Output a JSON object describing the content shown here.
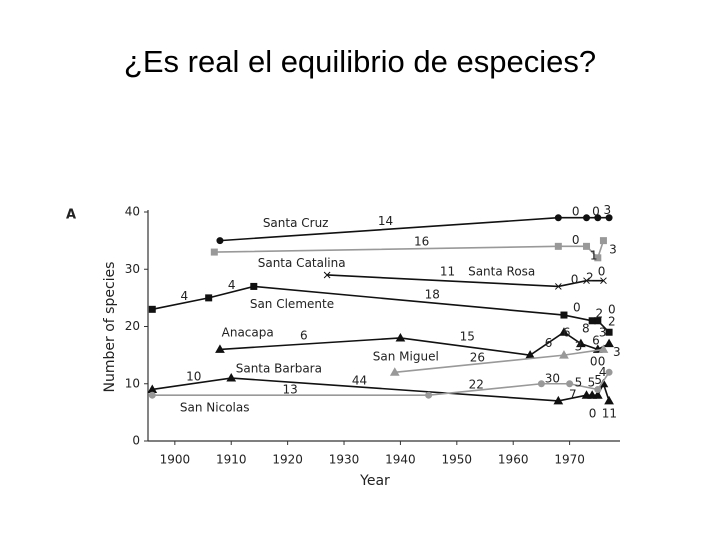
{
  "slide_title": "¿Es real el equilibrio de especies?",
  "chart_data": {
    "type": "line",
    "panel_label": "A",
    "x_label": "Year",
    "y_label": "Number of species",
    "xlim": [
      1894,
      1980
    ],
    "ylim": [
      0,
      40
    ],
    "xticks": [
      1900,
      1910,
      1920,
      1930,
      1940,
      1950,
      1960,
      1970
    ],
    "yticks": [
      0,
      10,
      20,
      30,
      40
    ],
    "series": [
      {
        "name": "Santa Cruz",
        "color": "#111111",
        "marker": "circle",
        "x": [
          1908,
          1968,
          1973,
          1975,
          1977
        ],
        "values": [
          35,
          39,
          39,
          39,
          39
        ]
      },
      {
        "name": "Santa Catalina",
        "color": "#999999",
        "marker": "square",
        "x": [
          1907,
          1968,
          1973,
          1975,
          1976
        ],
        "values": [
          33,
          34,
          34,
          32,
          35
        ]
      },
      {
        "name": "Santa Rosa",
        "color": "#111111",
        "marker": "cross",
        "x": [
          1927,
          1968,
          1973,
          1976
        ],
        "values": [
          29,
          27,
          28,
          28
        ]
      },
      {
        "name": "San Clemente",
        "color": "#111111",
        "marker": "square",
        "x": [
          1896,
          1906,
          1914,
          1969,
          1974,
          1975,
          1977
        ],
        "values": [
          23,
          25,
          27,
          22,
          21,
          21,
          19
        ]
      },
      {
        "name": "Anacapa",
        "color": "#111111",
        "marker": "triangle",
        "x": [
          1908,
          1940,
          1963,
          1969,
          1972,
          1975,
          1977
        ],
        "values": [
          16,
          18,
          15,
          19,
          17,
          16,
          17
        ]
      },
      {
        "name": "San Miguel",
        "color": "#999999",
        "marker": "triangle",
        "x": [
          1939,
          1969,
          1976
        ],
        "values": [
          12,
          15,
          16
        ]
      },
      {
        "name": "Santa Barbara",
        "color": "#111111",
        "marker": "triangle",
        "x": [
          1896,
          1910,
          1968,
          1973,
          1974,
          1975,
          1976,
          1977
        ],
        "values": [
          9,
          11,
          7,
          8,
          8,
          8,
          10,
          7
        ]
      },
      {
        "name": "San Nicolas",
        "color": "#999999",
        "marker": "circle",
        "x": [
          1896,
          1945,
          1965,
          1970,
          1975,
          1977
        ],
        "values": [
          8,
          8,
          10,
          10,
          9,
          12
        ]
      }
    ],
    "annotations": [
      {
        "text": "Santa Cruz",
        "x": 1915.6,
        "y": 38
      },
      {
        "text": "14",
        "x": 1936,
        "y": 38.3
      },
      {
        "text": "0",
        "x": 1970.4,
        "y": 40
      },
      {
        "text": "0",
        "x": 1974,
        "y": 40
      },
      {
        "text": "3",
        "x": 1976,
        "y": 40.3
      },
      {
        "text": "16",
        "x": 1942.4,
        "y": 34.8
      },
      {
        "text": "Santa Catalina",
        "x": 1914.7,
        "y": 31
      },
      {
        "text": "0",
        "x": 1970.4,
        "y": 35
      },
      {
        "text": "1",
        "x": 1973.6,
        "y": 32.3
      },
      {
        "text": "3",
        "x": 1977,
        "y": 33.4
      },
      {
        "text": "11",
        "x": 1947,
        "y": 29.5
      },
      {
        "text": "Santa Rosa",
        "x": 1952,
        "y": 29.5
      },
      {
        "text": "0",
        "x": 1970.2,
        "y": 28.1
      },
      {
        "text": "2",
        "x": 1972.9,
        "y": 28.5
      },
      {
        "text": "0",
        "x": 1975,
        "y": 29.5
      },
      {
        "text": "4",
        "x": 1901,
        "y": 25.2
      },
      {
        "text": "4",
        "x": 1909.4,
        "y": 27.2
      },
      {
        "text": "San Clemente",
        "x": 1913.3,
        "y": 23.8
      },
      {
        "text": "18",
        "x": 1944.3,
        "y": 25.5
      },
      {
        "text": "0",
        "x": 1970.6,
        "y": 23.2
      },
      {
        "text": "2",
        "x": 1974.6,
        "y": 22.2
      },
      {
        "text": "0",
        "x": 1976.8,
        "y": 22.9
      },
      {
        "text": "2",
        "x": 1976.8,
        "y": 20.8
      },
      {
        "text": "3",
        "x": 1975.2,
        "y": 18.9
      },
      {
        "text": "Anacapa",
        "x": 1908.3,
        "y": 18.9
      },
      {
        "text": "6",
        "x": 1922.2,
        "y": 18.3
      },
      {
        "text": "15",
        "x": 1950.5,
        "y": 18.2
      },
      {
        "text": "6",
        "x": 1965.6,
        "y": 17
      },
      {
        "text": "6",
        "x": 1968.8,
        "y": 18.9
      },
      {
        "text": "8",
        "x": 1972.2,
        "y": 19.6
      },
      {
        "text": "6",
        "x": 1974,
        "y": 17.5
      },
      {
        "text": "San Miguel",
        "x": 1935.1,
        "y": 14.7
      },
      {
        "text": "26",
        "x": 1952.3,
        "y": 14.5
      },
      {
        "text": "3",
        "x": 1970.9,
        "y": 16.4
      },
      {
        "text": "0",
        "x": 1973.6,
        "y": 13.8
      },
      {
        "text": "0",
        "x": 1975,
        "y": 13.8
      },
      {
        "text": "3",
        "x": 1977.7,
        "y": 15.5
      },
      {
        "text": "10",
        "x": 1902,
        "y": 11.2
      },
      {
        "text": "Santa Barbara",
        "x": 1910.8,
        "y": 12.6
      },
      {
        "text": "44",
        "x": 1931.4,
        "y": 10.5
      },
      {
        "text": "13",
        "x": 1919.1,
        "y": 8.9
      },
      {
        "text": "22",
        "x": 1952.1,
        "y": 9.8
      },
      {
        "text": "30",
        "x": 1965.6,
        "y": 10.8
      },
      {
        "text": "5",
        "x": 1970.9,
        "y": 10.1
      },
      {
        "text": "5",
        "x": 1973.2,
        "y": 10.1
      },
      {
        "text": "5",
        "x": 1974.4,
        "y": 10.6
      },
      {
        "text": "4",
        "x": 1975.2,
        "y": 12
      },
      {
        "text": "7",
        "x": 1969.9,
        "y": 8
      },
      {
        "text": "0",
        "x": 1973.4,
        "y": 4.7
      },
      {
        "text": "11",
        "x": 1975.7,
        "y": 4.7
      },
      {
        "text": "San Nicolas",
        "x": 1900.9,
        "y": 5.8
      }
    ]
  }
}
